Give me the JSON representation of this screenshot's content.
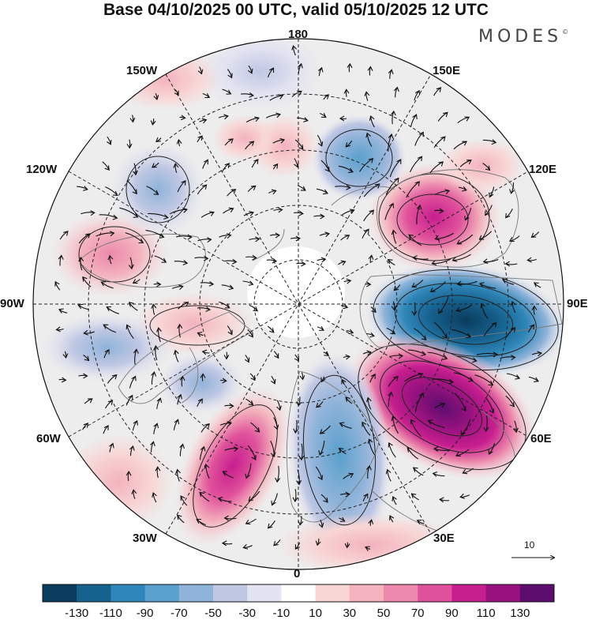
{
  "title": "Base 04/10/2025 00 UTC, valid 05/10/2025 12 UTC",
  "brand": "MODES",
  "brand_mark": "©",
  "longitude_labels": {
    "lon_180": "180",
    "lon_150e": "150E",
    "lon_120e": "120E",
    "lon_90e": "90E",
    "lon_60e": "60E",
    "lon_30e": "30E",
    "lon_0": "0",
    "lon_30w": "30W",
    "lon_60w": "60W",
    "lon_90w": "90W",
    "lon_120w": "120W",
    "lon_150w": "150W"
  },
  "reference_vector": "10",
  "colorbar": {
    "colors": [
      "#0b3c5d",
      "#16628f",
      "#2f86b8",
      "#5aa0cc",
      "#8fb3d9",
      "#bfc7e3",
      "#e3e3f1",
      "#ffffff",
      "#f8d6d6",
      "#f3b2bd",
      "#ec88ab",
      "#e0519b",
      "#c71e8e",
      "#97127f",
      "#5c0d6e"
    ],
    "ticks": [
      "-130",
      "-110",
      "-90",
      "-70",
      "-50",
      "-30",
      "-10",
      "10",
      "30",
      "50",
      "70",
      "90",
      "110",
      "130"
    ]
  },
  "colors": {
    "background_tint": "#ededed",
    "land_outline": "#7a7a7a",
    "graticule": "#222222",
    "contour": "#222222"
  }
}
